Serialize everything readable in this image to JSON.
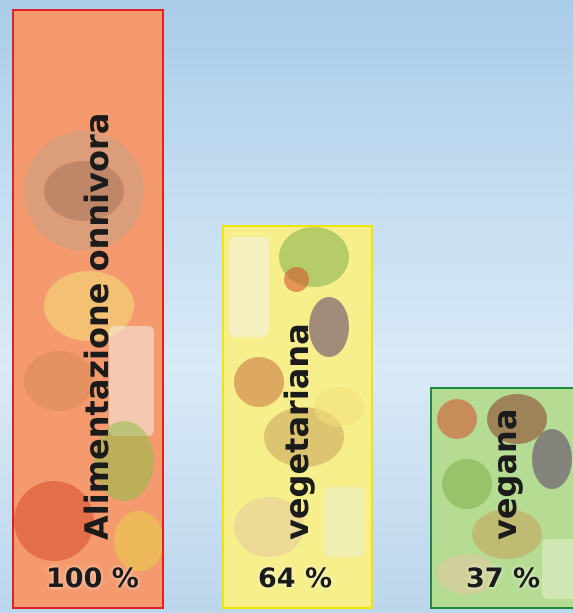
{
  "chart_data": {
    "type": "bar",
    "categories": [
      "Alimentazione onnivora",
      "vegetariana",
      "vegana"
    ],
    "values": [
      100,
      64,
      37
    ],
    "value_labels": [
      "100 %",
      "64 %",
      "37 %"
    ],
    "ylim": [
      0,
      100
    ],
    "title": "",
    "xlabel": "",
    "ylabel": "",
    "grid": false,
    "colors": {
      "bar_borders": [
        "#e02020",
        "#f2e500",
        "#1e8a3a"
      ],
      "bar_fills": [
        "#f49a6e",
        "#f6ef8c",
        "#b6dc93"
      ]
    }
  }
}
